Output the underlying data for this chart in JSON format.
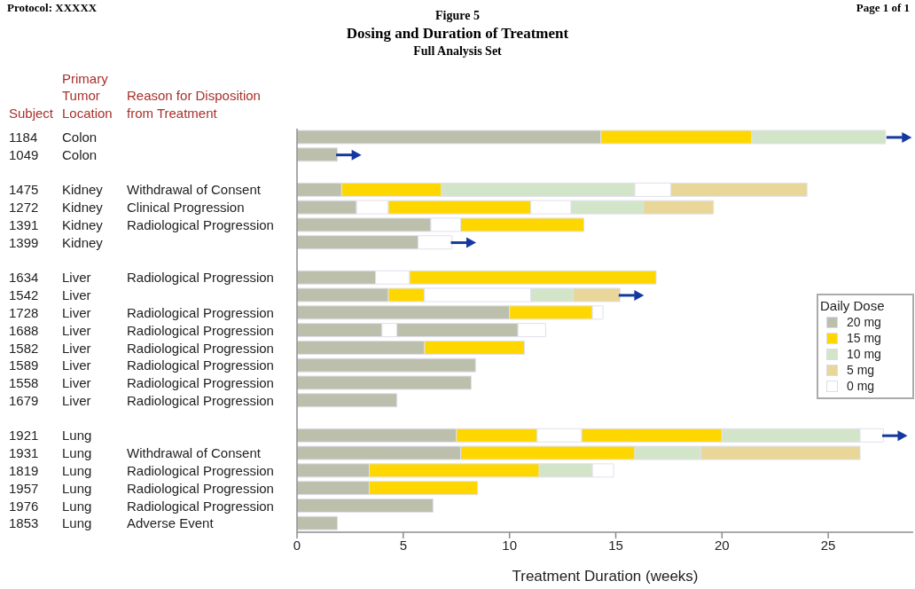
{
  "chart_data": {
    "type": "bar",
    "orientation": "horizontal",
    "stacked": true,
    "title": "Dosing and Duration of Treatment",
    "subtitle": "Full Analysis Set",
    "xlabel": "Treatment Duration (weeks)",
    "legend_title": "Daily Dose",
    "legend": "right",
    "annotations": [
      "Protocol: XXXXX",
      "Page 1 of 1",
      "Figure 5",
      "Subject",
      "Primary Tumor Location",
      "Reason for Disposition from Treatment"
    ],
    "categories": [
      "1184\tColon",
      "1049\tColon",
      null,
      "1475\tKidney\tWithdrawal of Consent",
      "1272\tKidney\tClinical Progression",
      "1391\tKidney\tRadiological Progression",
      "1399\tKidney",
      null,
      "1634\tLiver\tRadiological Progression",
      "1542\tLiver",
      "1728\tLiver\tRadiological Progression",
      "1688\tLiver\tRadiological Progression",
      "1582\tLiver\tRadiological Progression",
      "1589\tLiver\tRadiological Progression",
      "1558\tLiver\tRadiological Progression",
      "1679\tLiver\tRadiological Progression",
      null,
      "1921\tLung",
      "1931\tLung\tWithdrawal of Consent",
      "1819\tLung\tRadiological Progression",
      "1957\tLung\tRadiological Progression",
      "1976\tLung\tRadiological Progression",
      "1853\tLung\tAdverse Event"
    ],
    "xlim": [
      0,
      29
    ],
    "xticks": [
      0,
      5,
      10,
      15,
      20,
      25
    ],
    "series": [
      {
        "name": "20 mg",
        "color": "#bcbfab",
        "values": [
          14.3,
          1.9,
          null,
          2.1,
          2.8,
          6.3,
          5.7,
          null,
          3.7,
          4.3,
          10.0,
          4.0,
          6.0,
          8.4,
          8.2,
          4.7,
          null,
          7.5,
          7.7,
          3.4,
          3.4,
          6.4,
          1.9
        ]
      },
      {
        "color": "#ffffff",
        "values": [
          null,
          null,
          null,
          null,
          1.5,
          1.4,
          1.6,
          null,
          1.6,
          null,
          null,
          0.7,
          null,
          null,
          null,
          null,
          null,
          null,
          null,
          null,
          null,
          null,
          null
        ]
      },
      {
        "color": "#bcbfab",
        "values": [
          null,
          null,
          null,
          null,
          null,
          null,
          null,
          null,
          null,
          null,
          null,
          5.7,
          null,
          null,
          null,
          null,
          null,
          null,
          null,
          null,
          null,
          null,
          null
        ]
      },
      {
        "name": "15 mg",
        "color": "#ffd700",
        "values": [
          7.1,
          null,
          null,
          4.7,
          6.7,
          5.8,
          null,
          null,
          11.6,
          1.7,
          3.9,
          null,
          4.7,
          null,
          null,
          null,
          null,
          3.8,
          8.2,
          8.0,
          5.1,
          null,
          null
        ]
      },
      {
        "color": "#ffffff",
        "values": [
          null,
          null,
          null,
          null,
          1.9,
          null,
          null,
          null,
          null,
          5.0,
          0.5,
          1.3,
          null,
          null,
          null,
          null,
          null,
          2.1,
          null,
          null,
          null,
          null,
          null
        ]
      },
      {
        "color": "#ffd700",
        "values": [
          null,
          null,
          null,
          null,
          null,
          null,
          null,
          null,
          null,
          null,
          null,
          null,
          null,
          null,
          null,
          null,
          null,
          6.6,
          null,
          null,
          null,
          null,
          null
        ]
      },
      {
        "name": "10 mg",
        "color": "#d2e5c9",
        "values": [
          6.3,
          null,
          null,
          9.1,
          3.4,
          null,
          null,
          null,
          null,
          2.0,
          null,
          null,
          null,
          null,
          null,
          null,
          null,
          6.5,
          3.1,
          2.5,
          null,
          null,
          null
        ]
      },
      {
        "name": "5 mg",
        "color": "#e8d798",
        "values": [
          null,
          null,
          null,
          null,
          3.3,
          null,
          null,
          null,
          null,
          2.2,
          null,
          null,
          null,
          null,
          null,
          null,
          null,
          null,
          7.5,
          null,
          null,
          null,
          null
        ]
      },
      {
        "name": "0 mg",
        "color": "#ffffff",
        "values": [
          null,
          null,
          null,
          1.7,
          null,
          null,
          null,
          null,
          null,
          null,
          null,
          null,
          null,
          null,
          null,
          null,
          null,
          1.1,
          null,
          1.0,
          null,
          null,
          null
        ]
      },
      {
        "color": "#e8d798",
        "values": [
          null,
          null,
          null,
          6.4,
          null,
          null,
          null,
          null,
          null,
          null,
          null,
          null,
          null,
          null,
          null,
          null,
          null,
          null,
          null,
          null,
          null,
          null,
          null
        ]
      },
      {
        "type": "scatter",
        "marker": "triangle",
        "color": "#1438a0",
        "values": [
          28.7,
          2.8,
          null,
          null,
          null,
          null,
          8.2,
          null,
          null,
          16.1,
          null,
          null,
          null,
          null,
          null,
          null,
          null,
          28.5,
          null,
          null,
          null,
          null,
          null
        ]
      }
    ]
  }
}
